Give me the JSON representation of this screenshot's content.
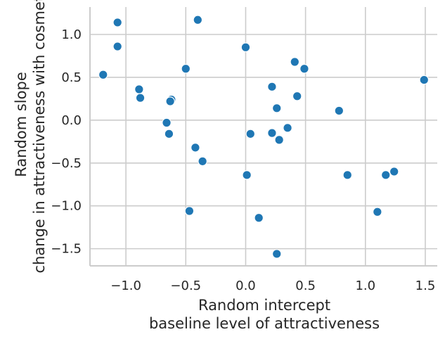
{
  "chart_data": {
    "type": "scatter",
    "xlabel": [
      "Random intercept",
      "baseline level of attractiveness"
    ],
    "ylabel": [
      "Random slope",
      "change in attractiveness with cosmetics"
    ],
    "xlim": [
      -1.3,
      1.6
    ],
    "ylim": [
      -1.7,
      1.32
    ],
    "x_ticks": [
      -1.0,
      -0.5,
      0.0,
      0.5,
      1.0,
      1.5
    ],
    "x_tick_labels": [
      "−1.0",
      "−0.5",
      "0.0",
      "0.5",
      "1.0",
      "1.5"
    ],
    "y_ticks": [
      1.0,
      0.5,
      0.0,
      -0.5,
      -1.0,
      -1.5
    ],
    "y_tick_labels": [
      "1.0",
      "0.5",
      "0.0",
      "−0.5",
      "−1.0",
      "−1.5"
    ],
    "grid": true,
    "marker_color": "#1f77b4",
    "grid_color": "#cccccc",
    "points": [
      {
        "x": -1.07,
        "y": 1.14
      },
      {
        "x": -1.07,
        "y": 0.86
      },
      {
        "x": -1.19,
        "y": 0.53
      },
      {
        "x": -0.89,
        "y": 0.36
      },
      {
        "x": -0.88,
        "y": 0.26
      },
      {
        "x": -0.62,
        "y": 0.24
      },
      {
        "x": -0.63,
        "y": 0.22
      },
      {
        "x": -0.5,
        "y": 0.6
      },
      {
        "x": -0.4,
        "y": 1.17
      },
      {
        "x": -0.66,
        "y": -0.03
      },
      {
        "x": -0.64,
        "y": -0.16
      },
      {
        "x": -0.42,
        "y": -0.32
      },
      {
        "x": -0.36,
        "y": -0.48
      },
      {
        "x": -0.47,
        "y": -1.06
      },
      {
        "x": 0.0,
        "y": 0.85
      },
      {
        "x": 0.04,
        "y": -0.16
      },
      {
        "x": 0.01,
        "y": -0.64
      },
      {
        "x": 0.11,
        "y": -1.14
      },
      {
        "x": 0.22,
        "y": 0.39
      },
      {
        "x": 0.26,
        "y": 0.14
      },
      {
        "x": 0.22,
        "y": -0.15
      },
      {
        "x": 0.28,
        "y": -0.23
      },
      {
        "x": 0.35,
        "y": -0.09
      },
      {
        "x": 0.41,
        "y": 0.68
      },
      {
        "x": 0.49,
        "y": 0.6
      },
      {
        "x": 0.43,
        "y": 0.28
      },
      {
        "x": 0.26,
        "y": -1.56
      },
      {
        "x": 0.78,
        "y": 0.11
      },
      {
        "x": 0.85,
        "y": -0.64
      },
      {
        "x": 1.1,
        "y": -1.07
      },
      {
        "x": 1.17,
        "y": -0.64
      },
      {
        "x": 1.24,
        "y": -0.6
      },
      {
        "x": 1.49,
        "y": 0.47
      }
    ]
  }
}
